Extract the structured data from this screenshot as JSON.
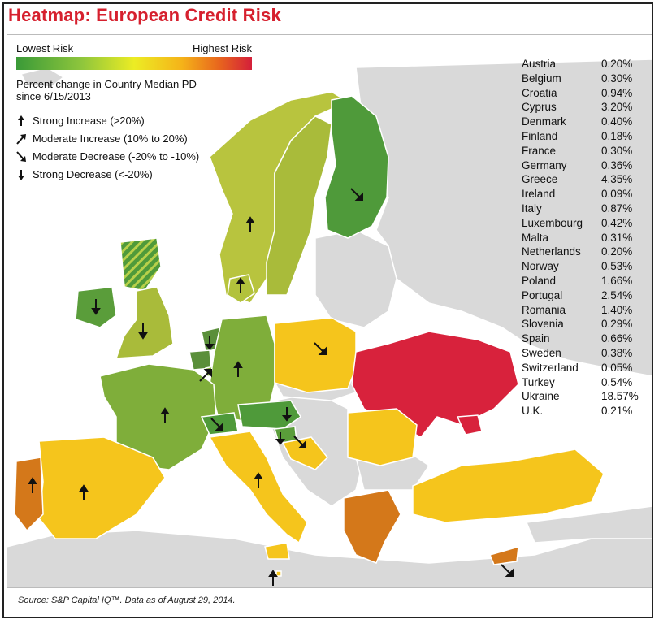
{
  "title": "Heatmap: European Credit Risk",
  "legend": {
    "lowest": "Lowest Risk",
    "highest": "Highest Risk",
    "description": "Percent change in Country Median PD since 6/15/2013",
    "keys": [
      {
        "icon": "arrow-up-icon",
        "label": "Strong Increase (>20%)"
      },
      {
        "icon": "arrow-up-right-icon",
        "label": "Moderate Increase (10% to 20%)"
      },
      {
        "icon": "arrow-down-right-icon",
        "label": "Moderate Decrease (-20% to -10%)"
      },
      {
        "icon": "arrow-down-icon",
        "label": "Strong Decrease (<-20%)"
      }
    ]
  },
  "countries": [
    {
      "name": "Austria",
      "value": "0.20%"
    },
    {
      "name": "Belgium",
      "value": "0.30%"
    },
    {
      "name": "Croatia",
      "value": "0.94%"
    },
    {
      "name": "Cyprus",
      "value": "3.20%"
    },
    {
      "name": "Denmark",
      "value": "0.40%"
    },
    {
      "name": "Finland",
      "value": "0.18%"
    },
    {
      "name": "France",
      "value": "0.30%"
    },
    {
      "name": "Germany",
      "value": "0.36%"
    },
    {
      "name": "Greece",
      "value": "4.35%"
    },
    {
      "name": "Ireland",
      "value": "0.09%"
    },
    {
      "name": "Italy",
      "value": "0.87%"
    },
    {
      "name": "Luxembourg",
      "value": "0.42%"
    },
    {
      "name": "Malta",
      "value": "0.31%"
    },
    {
      "name": "Netherlands",
      "value": "0.20%"
    },
    {
      "name": "Norway",
      "value": "0.53%"
    },
    {
      "name": "Poland",
      "value": "1.66%"
    },
    {
      "name": "Portugal",
      "value": "2.54%"
    },
    {
      "name": "Romania",
      "value": "1.40%"
    },
    {
      "name": "Slovenia",
      "value": "0.29%"
    },
    {
      "name": "Spain",
      "value": "0.66%"
    },
    {
      "name": "Sweden",
      "value": "0.38%"
    },
    {
      "name": "Switzerland",
      "value": "0.05%"
    },
    {
      "name": "Turkey",
      "value": "0.54%"
    },
    {
      "name": "Ukraine",
      "value": "18.57%"
    },
    {
      "name": "U.K.",
      "value": "0.21%"
    }
  ],
  "colors": {
    "low_green": "#4f9a3a",
    "light_green": "#9fba3a",
    "yellow_green": "#b8c43e",
    "yellow": "#f5c51c",
    "orange": "#e88a1e",
    "dark_orange": "#d4781a",
    "red": "#d8223c",
    "no_data": "#d9d9d9",
    "sea": "#ffffff"
  },
  "source": "Source: S&P Capital IQ™. Data as of August 29, 2014."
}
